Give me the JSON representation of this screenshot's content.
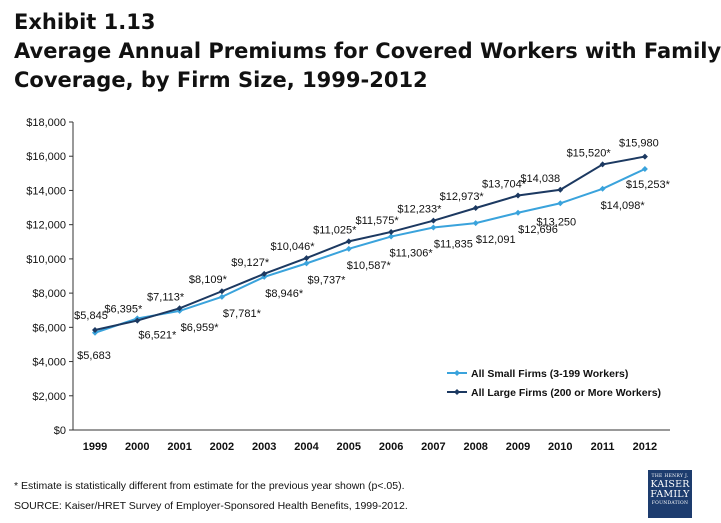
{
  "header": {
    "exhibit": "Exhibit 1.13",
    "title_line1": "Average Annual Premiums for Covered Workers with Family",
    "title_line2": "Coverage, by Firm Size, 1999-2012"
  },
  "footer": {
    "note": "* Estimate is statistically different from estimate for the previous year shown (p<.05).",
    "source": "SOURCE:  Kaiser/HRET Survey of Employer-Sponsored Health Benefits, 1999-2012."
  },
  "logo": {
    "line1": "THE HENRY J.",
    "line2": "KAISER",
    "line3": "FAMILY",
    "line4": "FOUNDATION"
  },
  "chart_data": {
    "type": "line",
    "title": "Average Annual Premiums for Covered Workers with Family Coverage, by Firm Size, 1999-2012",
    "xlabel": "",
    "ylabel": "",
    "categories": [
      "1999",
      "2000",
      "2001",
      "2002",
      "2003",
      "2004",
      "2005",
      "2006",
      "2007",
      "2008",
      "2009",
      "2010",
      "2011",
      "2012"
    ],
    "ylim": [
      0,
      18000
    ],
    "yticks": [
      0,
      2000,
      4000,
      6000,
      8000,
      10000,
      12000,
      14000,
      16000,
      18000
    ],
    "ytick_labels": [
      "$0",
      "$2,000",
      "$4,000",
      "$6,000",
      "$8,000",
      "$10,000",
      "$12,000",
      "$14,000",
      "$16,000",
      "$18,000"
    ],
    "grid": false,
    "legend_position": "bottom-right",
    "series": [
      {
        "name": "All Small Firms (3-199 Workers)",
        "color": "#3aa3dc",
        "marker": "diamond",
        "values": [
          5683,
          6521,
          6959,
          7781,
          8946,
          9737,
          10587,
          11306,
          11835,
          12091,
          12696,
          13250,
          14098,
          15253
        ],
        "labels": [
          "$5,683",
          "$6,521*",
          "$6,959*",
          "$7,781*",
          "$8,946*",
          "$9,737*",
          "$10,587*",
          "$11,306*",
          "$11,835",
          "$12,091",
          "$12,696",
          "$13,250",
          "$14,098*",
          "$15,253*"
        ]
      },
      {
        "name": "All Large Firms (200 or More Workers)",
        "color": "#1c3961",
        "marker": "diamond",
        "values": [
          5845,
          6395,
          7113,
          8109,
          9127,
          10046,
          11025,
          11575,
          12233,
          12973,
          13704,
          14038,
          15520,
          15980
        ],
        "labels": [
          "$5,845",
          "$6,395*",
          "$7,113*",
          "$8,109*",
          "$9,127*",
          "$10,046*",
          "$11,025*",
          "$11,575*",
          "$12,233*",
          "$12,973*",
          "$13,704*",
          "$14,038",
          "$15,520*",
          "$15,980"
        ]
      }
    ]
  }
}
